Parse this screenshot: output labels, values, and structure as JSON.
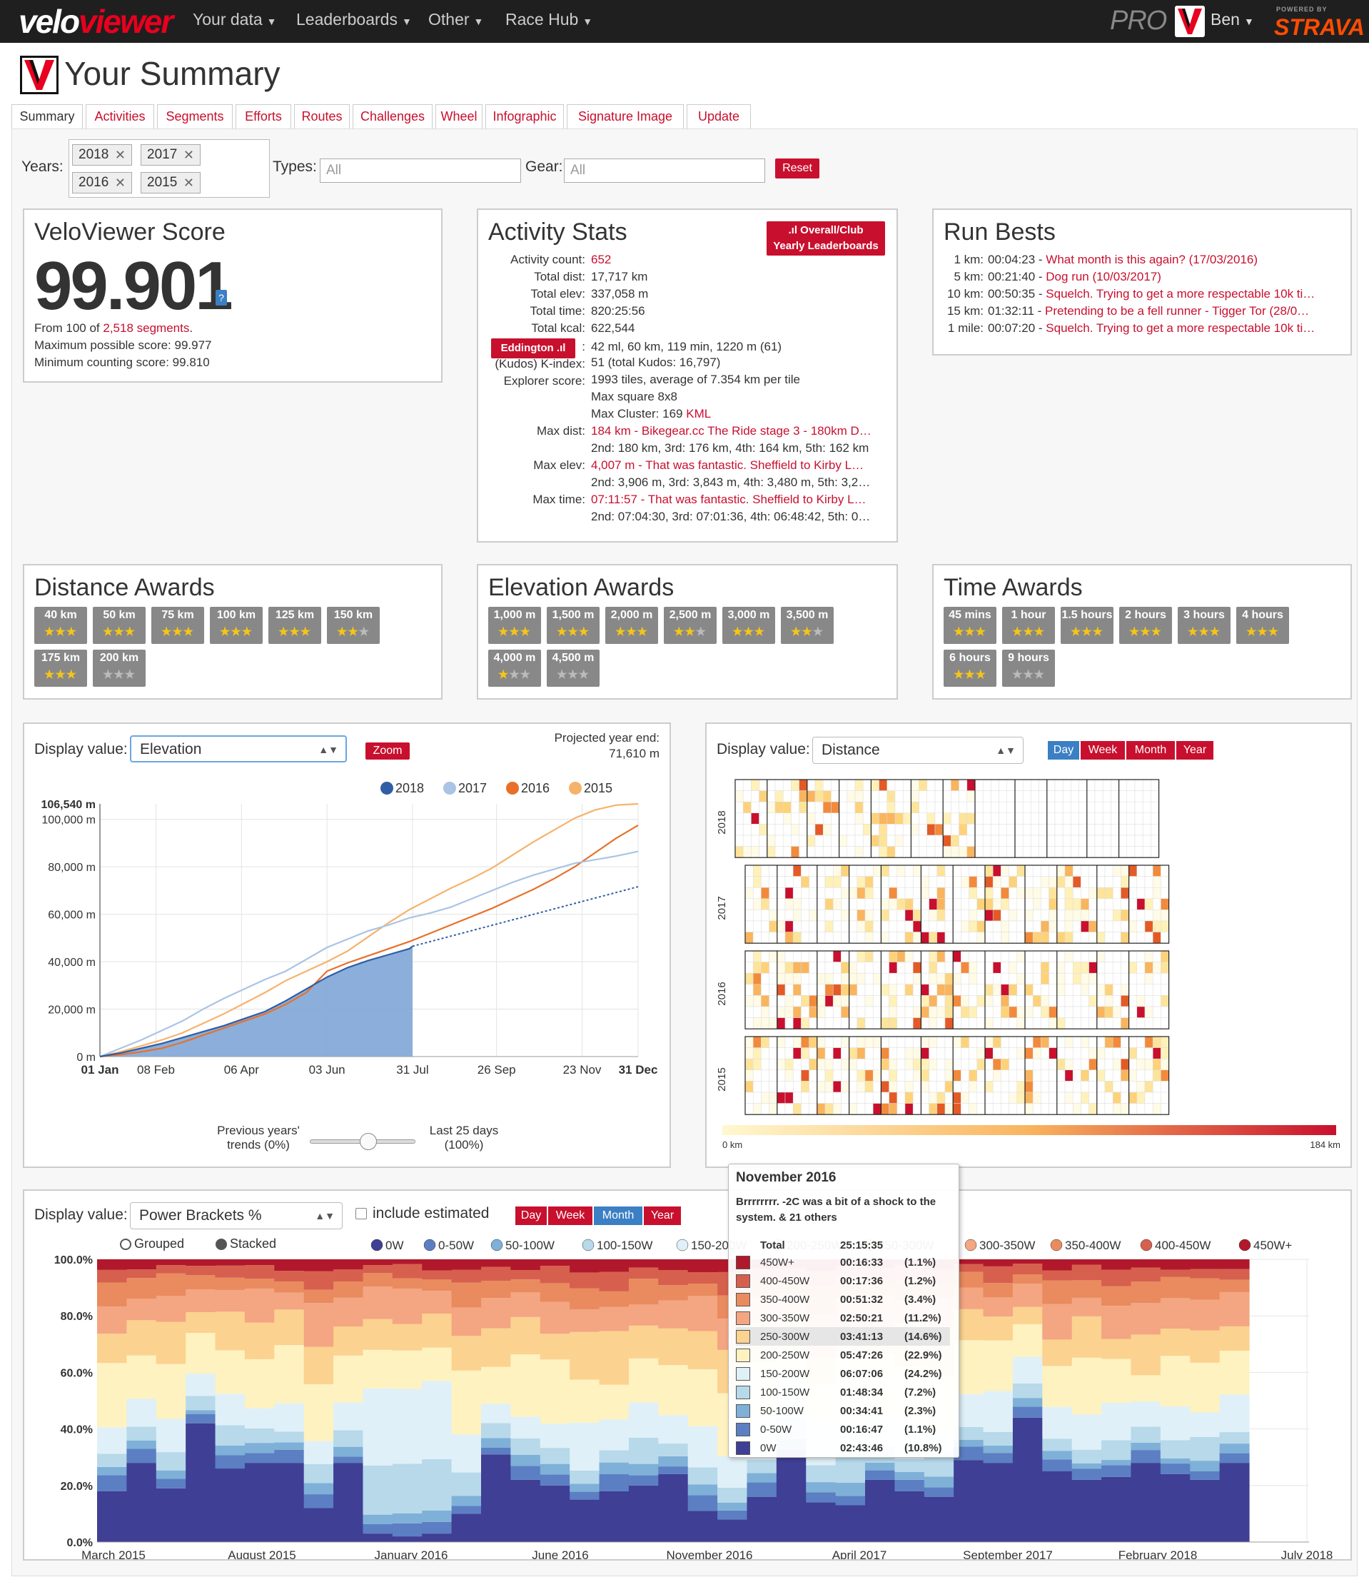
{
  "nav": {
    "logo_a": "velo",
    "logo_b": "viewer",
    "items": [
      "Your data",
      "Leaderboards",
      "Other",
      "Race Hub"
    ],
    "pro": "PRO",
    "user": "Ben",
    "powered": "POWERED BY",
    "strava": "STRAVA"
  },
  "page": {
    "title": "Your Summary"
  },
  "tabs": [
    "Summary",
    "Activities",
    "Segments",
    "Efforts",
    "Routes",
    "Challenges",
    "Wheel",
    "Infographic",
    "Signature Image",
    "Update"
  ],
  "filters": {
    "years_label": "Years:",
    "years": [
      "2018",
      "2017",
      "2016",
      "2015"
    ],
    "types_label": "Types:",
    "types_placeholder": "All",
    "gear_label": "Gear:",
    "gear_placeholder": "All",
    "reset": "Reset"
  },
  "score": {
    "title": "VeloViewer Score",
    "value": "99.901",
    "help": "?",
    "from_pre": "From 100 of ",
    "from_link": "2,518 segments",
    "from_post": ".",
    "max": "Maximum possible score: 99.977",
    "min": "Minimum counting score: 99.810"
  },
  "stats": {
    "title": "Activity Stats",
    "lb_button_1": "Overall/Club",
    "lb_button_2": "Yearly Leaderboards",
    "rows": [
      {
        "label": "Activity count:",
        "value": "652",
        "red": true
      },
      {
        "label": "Total dist:",
        "value": "17,717 km"
      },
      {
        "label": "Total elev:",
        "value": "337,058 m"
      },
      {
        "label": "Total time:",
        "value": "820:25:56"
      },
      {
        "label": "Total kcal:",
        "value": "622,544"
      }
    ],
    "eddington_btn": "Eddington",
    "eddington_value": "42 ml, 60 km, 119 min, 1220 m (61)",
    "kudos_label": "(Kudos) K-index:",
    "kudos_value": "51 (total Kudos: 16,797)",
    "explorer_label": "Explorer score:",
    "explorer_1": "1993 tiles, average of 7.354 km per tile",
    "explorer_2": "Max square 8x8",
    "explorer_3": "Max Cluster: 169 ",
    "explorer_kml": "KML",
    "maxdist_label": "Max dist:",
    "maxdist_1": "184 km - Bikegear.cc The Ride stage 3 - 180km D…",
    "maxdist_2": "2nd: 180 km, 3rd: 176 km, 4th: 164 km, 5th: 162 km",
    "maxelev_label": "Max elev:",
    "maxelev_1": "4,007 m - That was fantastic. Sheffield to Kirby L…",
    "maxelev_2": "2nd: 3,906 m, 3rd: 3,843 m, 4th: 3,480 m, 5th: 3,2…",
    "maxtime_label": "Max time:",
    "maxtime_1": "07:11:57 - That was fantastic. Sheffield to Kirby L…",
    "maxtime_2": "2nd: 07:04:30, 3rd: 07:01:36, 4th: 06:48:42, 5th: 0…"
  },
  "runbests": {
    "title": "Run Bests",
    "rows": [
      {
        "dist": "1 km:",
        "time": "00:04:23 - ",
        "name": "What month is this again? (17/03/2016)"
      },
      {
        "dist": "5 km:",
        "time": "00:21:40 - ",
        "name": "Dog run (10/03/2017)"
      },
      {
        "dist": "10 km:",
        "time": "00:50:35 - ",
        "name": "Squelch. Trying to get a more respectable 10k ti…"
      },
      {
        "dist": "15 km:",
        "time": "01:32:11 - ",
        "name": "Pretending to be a fell runner - Tigger Tor (28/0…"
      },
      {
        "dist": "1 mile:",
        "time": "00:07:20 - ",
        "name": "Squelch. Trying to get a more respectable 10k ti…"
      }
    ]
  },
  "distance_awards": {
    "title": "Distance Awards",
    "items": [
      {
        "label": "40 km",
        "stars": 3
      },
      {
        "label": "50 km",
        "stars": 3
      },
      {
        "label": "75 km",
        "stars": 3
      },
      {
        "label": "100 km",
        "stars": 3
      },
      {
        "label": "125 km",
        "stars": 3
      },
      {
        "label": "150 km",
        "stars": 2
      },
      {
        "label": "175 km",
        "stars": 3
      },
      {
        "label": "200 km",
        "stars": 0
      }
    ]
  },
  "elevation_awards": {
    "title": "Elevation Awards",
    "items": [
      {
        "label": "1,000 m",
        "stars": 3
      },
      {
        "label": "1,500 m",
        "stars": 3
      },
      {
        "label": "2,000 m",
        "stars": 3
      },
      {
        "label": "2,500 m",
        "stars": 2
      },
      {
        "label": "3,000 m",
        "stars": 3
      },
      {
        "label": "3,500 m",
        "stars": 2
      },
      {
        "label": "4,000 m",
        "stars": 1
      },
      {
        "label": "4,500 m",
        "stars": 0
      }
    ]
  },
  "time_awards": {
    "title": "Time Awards",
    "items": [
      {
        "label": "45 mins",
        "stars": 3
      },
      {
        "label": "1 hour",
        "stars": 3
      },
      {
        "label": "1.5 hours",
        "stars": 3
      },
      {
        "label": "2 hours",
        "stars": 3
      },
      {
        "label": "3 hours",
        "stars": 3
      },
      {
        "label": "4 hours",
        "stars": 3
      },
      {
        "label": "6 hours",
        "stars": 3
      },
      {
        "label": "9 hours",
        "stars": 0
      }
    ]
  },
  "cum": {
    "display_label": "Display value:",
    "select": "Elevation",
    "zoom": "Zoom",
    "proj_1": "Projected year end:",
    "proj_2": "71,610 m",
    "slider_left_1": "Previous years'",
    "slider_left_2": "trends (0%)",
    "slider_right_1": "Last 25 days",
    "slider_right_2": "(100%)",
    "slider_value": 0.55
  },
  "heat": {
    "display_label": "Display value:",
    "select": "Distance",
    "buttons": [
      "Day",
      "Week",
      "Month",
      "Year"
    ],
    "active": "Day",
    "years": [
      "2018",
      "2017",
      "2016",
      "2015"
    ],
    "scale_min": "0 km",
    "scale_max": "184 km"
  },
  "power": {
    "display_label": "Display value:",
    "select": "Power Brackets %",
    "include": "include estimated",
    "buttons": [
      "Day",
      "Week",
      "Month",
      "Year"
    ],
    "active": "Month",
    "mode_grouped": "Grouped",
    "mode_stacked": "Stacked"
  },
  "tooltip": {
    "title": "November 2016",
    "note": "Brrrrrrrr. -2C was a bit of a shock to the system. & 21 others",
    "total_label": "Total",
    "total_time": "25:15:35",
    "rows": [
      {
        "name": "450W+",
        "time": "00:16:33",
        "pct": "(1.1%)",
        "color": "#b2182b"
      },
      {
        "name": "400-450W",
        "time": "00:17:36",
        "pct": "(1.2%)",
        "color": "#d6604d"
      },
      {
        "name": "350-400W",
        "time": "00:51:32",
        "pct": "(3.4%)",
        "color": "#e98b5e"
      },
      {
        "name": "300-350W",
        "time": "02:50:21",
        "pct": "(11.2%)",
        "color": "#f4a582"
      },
      {
        "name": "250-300W",
        "time": "03:41:13",
        "pct": "(14.6%)",
        "color": "#fbd28f"
      },
      {
        "name": "200-250W",
        "time": "05:47:26",
        "pct": "(22.9%)",
        "color": "#fdf2c0"
      },
      {
        "name": "150-200W",
        "time": "06:07:06",
        "pct": "(24.2%)",
        "color": "#e0f0f8"
      },
      {
        "name": "100-150W",
        "time": "01:48:34",
        "pct": "(7.2%)",
        "color": "#b7d9ea"
      },
      {
        "name": "50-100W",
        "time": "00:34:41",
        "pct": "(2.3%)",
        "color": "#7fb0d8"
      },
      {
        "name": "0-50W",
        "time": "00:16:47",
        "pct": "(1.1%)",
        "color": "#5b7fc2"
      },
      {
        "name": "0W",
        "time": "02:43:46",
        "pct": "(10.8%)",
        "color": "#3f3f95"
      }
    ]
  },
  "chart_data": [
    {
      "type": "line",
      "title": "",
      "ylabel": "",
      "x_ticks": [
        "01 Jan",
        "08 Feb",
        "06 Apr",
        "03 Jun",
        "31 Jul",
        "26 Sep",
        "23 Nov",
        "31 Dec"
      ],
      "y_ticks": [
        "0 m",
        "20,000 m",
        "40,000 m",
        "60,000 m",
        "80,000 m",
        "100,000 m"
      ],
      "y_max_label": "106,540 m",
      "ylim": [
        0,
        106540
      ],
      "series": [
        {
          "name": "2018",
          "color": "#2f5ea6",
          "x": [
            0,
            14,
            28,
            42,
            56,
            70,
            84,
            98,
            112,
            126,
            140,
            154,
            168,
            182,
            196,
            210,
            212
          ],
          "y": [
            0,
            1500,
            3500,
            5500,
            8000,
            10500,
            13000,
            16000,
            19000,
            23500,
            28500,
            33500,
            37500,
            40500,
            43000,
            45500,
            46500
          ],
          "projection": {
            "x": [
              212,
              365
            ],
            "y": [
              46500,
              71610
            ]
          }
        },
        {
          "name": "2017",
          "color": "#a9c4e4",
          "x": [
            0,
            14,
            28,
            42,
            56,
            70,
            84,
            98,
            112,
            126,
            140,
            154,
            168,
            182,
            196,
            210,
            224,
            238,
            252,
            266,
            280,
            294,
            308,
            322,
            336,
            350,
            365
          ],
          "y": [
            0,
            3500,
            7000,
            11000,
            15000,
            20000,
            24500,
            28500,
            32500,
            36000,
            41000,
            46000,
            49500,
            53000,
            55500,
            58500,
            60500,
            63000,
            66500,
            70000,
            73500,
            76500,
            79000,
            81500,
            83000,
            84500,
            86500
          ]
        },
        {
          "name": "2016",
          "color": "#e8702a",
          "x": [
            0,
            14,
            28,
            42,
            56,
            70,
            84,
            98,
            112,
            126,
            140,
            154,
            168,
            182,
            196,
            210,
            224,
            238,
            252,
            266,
            280,
            294,
            308,
            322,
            336,
            350,
            365
          ],
          "y": [
            0,
            800,
            2000,
            3500,
            6000,
            9000,
            12000,
            15000,
            18000,
            22000,
            27000,
            36000,
            39500,
            42500,
            45500,
            48500,
            52000,
            55500,
            59000,
            62500,
            66500,
            70500,
            75000,
            80000,
            86000,
            92000,
            97500
          ]
        },
        {
          "name": "2015",
          "color": "#f6b26b",
          "x": [
            0,
            14,
            28,
            42,
            56,
            70,
            84,
            98,
            112,
            126,
            140,
            154,
            168,
            182,
            196,
            210,
            224,
            238,
            252,
            266,
            280,
            294,
            308,
            322,
            336,
            350,
            365
          ],
          "y": [
            0,
            2000,
            4500,
            7000,
            10000,
            14000,
            18000,
            22500,
            27000,
            32000,
            36000,
            40000,
            44500,
            50500,
            56500,
            62000,
            66500,
            71000,
            75000,
            79500,
            85000,
            90500,
            95500,
            100500,
            104000,
            106000,
            106540
          ]
        }
      ]
    },
    {
      "type": "heatmap",
      "title": "",
      "rows": [
        "2018",
        "2017",
        "2016",
        "2015"
      ],
      "value": "Distance",
      "range": [
        0,
        184
      ],
      "unit": "km"
    },
    {
      "type": "area",
      "title": "",
      "stacked": true,
      "unit": "%",
      "x_ticks": [
        "March 2015",
        "August 2015",
        "January 2016",
        "June 2016",
        "November 2016",
        "April 2017",
        "September 2017",
        "February 2018",
        "July 2018"
      ],
      "y_ticks": [
        "0.0%",
        "20.0%",
        "40.0%",
        "60.0%",
        "80.0%",
        "100.0%"
      ],
      "brackets": [
        "0W",
        "0-50W",
        "50-100W",
        "100-150W",
        "150-200W",
        "200-250W",
        "250-300W",
        "300-350W",
        "350-400W",
        "400-450W",
        "450W+"
      ],
      "colors": [
        "#3f3f95",
        "#5b7fc2",
        "#7fb0d8",
        "#b7d9ea",
        "#e0f0f8",
        "#fdf2c0",
        "#fbd28f",
        "#f4a582",
        "#e98b5e",
        "#d6604d",
        "#b2182b"
      ],
      "months": [
        "2015-03",
        "2015-04",
        "2015-05",
        "2015-06",
        "2015-07",
        "2015-08",
        "2015-09",
        "2015-10",
        "2015-11",
        "2015-12",
        "2016-01",
        "2016-02",
        "2016-03",
        "2016-04",
        "2016-05",
        "2016-06",
        "2016-07",
        "2016-08",
        "2016-09",
        "2016-10",
        "2016-11",
        "2016-12",
        "2017-01",
        "2017-02",
        "2017-03",
        "2017-04",
        "2017-05",
        "2017-06",
        "2017-07",
        "2017-08",
        "2017-09",
        "2017-10",
        "2017-11",
        "2017-12",
        "2018-01",
        "2018-02",
        "2018-03",
        "2018-04",
        "2018-05"
      ],
      "zero_watt_pct": [
        18,
        28,
        19,
        42,
        26,
        28,
        28,
        12,
        28,
        3,
        2,
        3,
        10,
        31,
        22,
        20,
        15,
        18,
        20,
        24,
        11,
        8,
        16,
        30,
        14,
        13,
        22,
        18,
        16,
        29,
        28,
        44,
        25,
        22,
        23,
        28,
        24,
        22,
        28
      ]
    }
  ]
}
